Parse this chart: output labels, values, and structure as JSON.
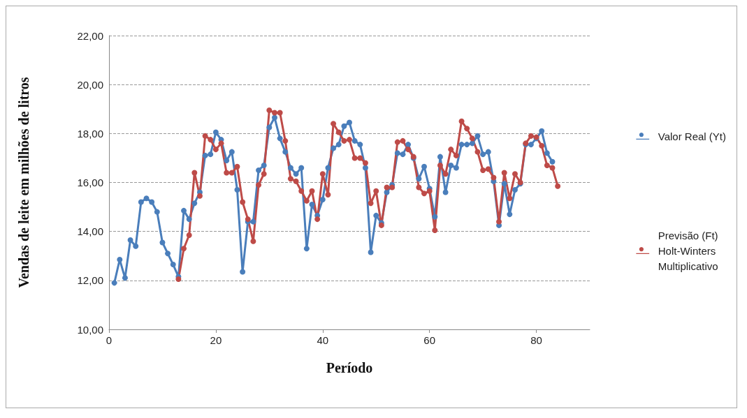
{
  "chart_data": {
    "type": "line",
    "xlabel": "Período",
    "ylabel": "Vendas de leite em milhões de litros",
    "xlim": [
      0,
      90
    ],
    "xticks": [
      0,
      20,
      40,
      60,
      80
    ],
    "ylim": [
      10,
      22
    ],
    "yticks": [
      {
        "value": 10,
        "label": "10,00"
      },
      {
        "value": 12,
        "label": "12,00"
      },
      {
        "value": 14,
        "label": "14,00"
      },
      {
        "value": 16,
        "label": "16,00"
      },
      {
        "value": 18,
        "label": "18,00"
      },
      {
        "value": 20,
        "label": "20,00"
      },
      {
        "value": 22,
        "label": "22,00"
      }
    ],
    "grid": "y",
    "legend": "right",
    "marker": "circle",
    "line_style": "solid",
    "series": [
      {
        "name": "Valor Real (Yt)",
        "color": "#4a7ebb",
        "x": [
          1,
          2,
          3,
          4,
          5,
          6,
          7,
          8,
          9,
          10,
          11,
          12,
          13,
          14,
          15,
          16,
          17,
          18,
          19,
          20,
          21,
          22,
          23,
          24,
          25,
          26,
          27,
          28,
          29,
          30,
          31,
          32,
          33,
          34,
          35,
          36,
          37,
          38,
          39,
          40,
          41,
          42,
          43,
          44,
          45,
          46,
          47,
          48,
          49,
          50,
          51,
          52,
          53,
          54,
          55,
          56,
          57,
          58,
          59,
          60,
          61,
          62,
          63,
          64,
          65,
          66,
          67,
          68,
          69,
          70,
          71,
          72,
          73,
          74,
          75,
          76,
          77,
          78,
          79,
          80,
          81,
          82,
          83
        ],
        "values": [
          11.9,
          12.85,
          12.1,
          13.65,
          13.4,
          15.2,
          15.35,
          15.2,
          14.8,
          13.55,
          13.1,
          12.65,
          12.15,
          14.85,
          14.5,
          15.15,
          15.6,
          17.1,
          17.15,
          18.05,
          17.75,
          16.9,
          17.25,
          15.7,
          12.35,
          14.4,
          14.4,
          16.5,
          16.7,
          18.25,
          18.65,
          17.8,
          17.25,
          16.6,
          16.35,
          16.6,
          13.3,
          15.1,
          14.65,
          15.3,
          16.6,
          17.4,
          17.55,
          18.3,
          18.45,
          17.7,
          17.55,
          16.6,
          13.15,
          14.65,
          14.35,
          15.6,
          15.9,
          17.2,
          17.15,
          17.55,
          17.0,
          16.15,
          16.65,
          15.75,
          14.6,
          17.05,
          15.6,
          16.7,
          16.6,
          17.55,
          17.55,
          17.6,
          17.9,
          17.15,
          17.25,
          16.05,
          14.25,
          15.95,
          14.7,
          15.7,
          15.95,
          17.55,
          17.55,
          17.8,
          18.1,
          17.2,
          16.85
        ]
      },
      {
        "name": "Previsão (Ft)\nHolt-Winters\nMultiplicativo",
        "color": "#be4b48",
        "x": [
          13,
          14,
          15,
          16,
          17,
          18,
          19,
          20,
          21,
          22,
          23,
          24,
          25,
          26,
          27,
          28,
          29,
          30,
          31,
          32,
          33,
          34,
          35,
          36,
          37,
          38,
          39,
          40,
          41,
          42,
          43,
          44,
          45,
          46,
          47,
          48,
          49,
          50,
          51,
          52,
          53,
          54,
          55,
          56,
          57,
          58,
          59,
          60,
          61,
          62,
          63,
          64,
          65,
          66,
          67,
          68,
          69,
          70,
          71,
          72,
          73,
          74,
          75,
          76,
          77,
          78,
          79,
          80,
          81,
          82,
          83,
          84
        ],
        "values": [
          12.05,
          13.3,
          13.85,
          16.4,
          15.45,
          17.9,
          17.75,
          17.35,
          17.6,
          16.4,
          16.4,
          16.65,
          15.2,
          14.5,
          13.6,
          15.9,
          16.35,
          18.95,
          18.85,
          18.85,
          17.7,
          16.15,
          16.05,
          15.65,
          15.25,
          15.65,
          14.5,
          16.35,
          15.5,
          18.4,
          18.05,
          17.7,
          17.75,
          17.0,
          17.0,
          16.8,
          15.15,
          15.65,
          14.25,
          15.8,
          15.8,
          17.65,
          17.7,
          17.35,
          17.05,
          15.8,
          15.55,
          15.65,
          14.05,
          16.7,
          16.35,
          17.35,
          17.1,
          18.5,
          18.2,
          17.8,
          17.25,
          16.5,
          16.55,
          16.2,
          14.4,
          16.4,
          15.35,
          16.35,
          16.0,
          17.6,
          17.9,
          17.85,
          17.5,
          16.7,
          16.6,
          15.85
        ]
      }
    ]
  }
}
